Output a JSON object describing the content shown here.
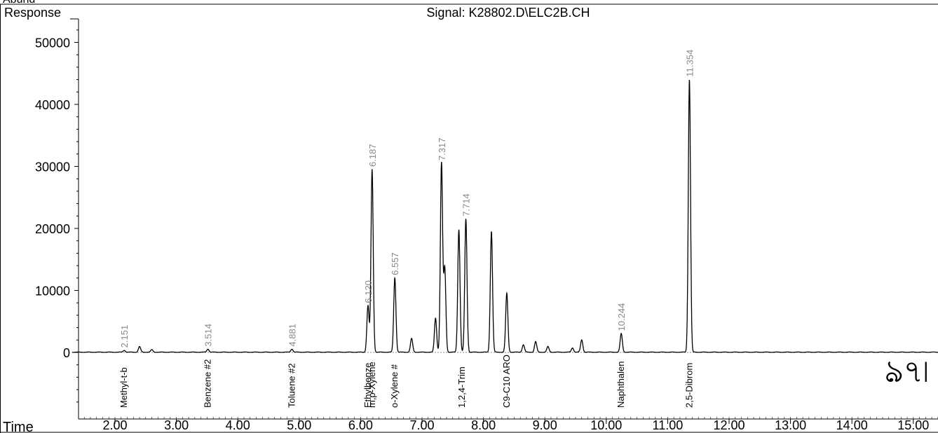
{
  "chart_data": {
    "type": "line",
    "title": "Signal: K28802.D\\ELC2B.CH",
    "xlabel": "Time",
    "ylabel": "Response",
    "top_axis_label": "Abund",
    "xlim": [
      1.2,
      16.0
    ],
    "ylim": [
      -9000,
      53000
    ],
    "x_ticks": [
      "2.00",
      "3.00",
      "4.00",
      "5.00",
      "6.00",
      "7.00",
      "8.00",
      "9.00",
      "10.00",
      "11.00",
      "12.00",
      "13.00",
      "14.00",
      "15.00"
    ],
    "y_ticks": [
      "50000",
      "40000",
      "30000",
      "20000",
      "10000",
      "0"
    ],
    "grid": false,
    "peaks": [
      {
        "rt": 2.151,
        "height": 300
      },
      {
        "rt": 2.4,
        "height": 900
      },
      {
        "rt": 2.6,
        "height": 400
      },
      {
        "rt": 3.514,
        "height": 500
      },
      {
        "rt": 4.881,
        "height": 500
      },
      {
        "rt": 6.12,
        "height": 7500
      },
      {
        "rt": 6.187,
        "height": 29500
      },
      {
        "rt": 6.557,
        "height": 12000
      },
      {
        "rt": 6.83,
        "height": 2200
      },
      {
        "rt": 7.22,
        "height": 5500
      },
      {
        "rt": 7.317,
        "height": 30500
      },
      {
        "rt": 7.37,
        "height": 13500
      },
      {
        "rt": 7.6,
        "height": 19800
      },
      {
        "rt": 7.714,
        "height": 21500
      },
      {
        "rt": 8.13,
        "height": 19500
      },
      {
        "rt": 8.38,
        "height": 9500
      },
      {
        "rt": 8.65,
        "height": 1200
      },
      {
        "rt": 8.85,
        "height": 1700
      },
      {
        "rt": 9.05,
        "height": 900
      },
      {
        "rt": 9.6,
        "height": 2000
      },
      {
        "rt": 9.45,
        "height": 700
      },
      {
        "rt": 10.244,
        "height": 3000
      },
      {
        "rt": 11.354,
        "height": 44000
      }
    ],
    "peak_labels": [
      "2.151",
      "3.514",
      "4.881",
      "6.120",
      "6.187",
      "6.557",
      "7.317",
      "7.714",
      "10.244",
      "11.354"
    ],
    "compound_labels": [
      {
        "rt": 2.151,
        "name": "Methyl-t-b"
      },
      {
        "rt": 3.514,
        "name": "Benzene #2"
      },
      {
        "rt": 4.881,
        "name": "Toluene #2"
      },
      {
        "rt": 6.12,
        "name": "Ethylbenze"
      },
      {
        "rt": 6.187,
        "name": "m,p-Xylene"
      },
      {
        "rt": 6.557,
        "name": "o-Xylene #"
      },
      {
        "rt": 7.65,
        "name": "1,2,4-Trim"
      },
      {
        "rt": 8.38,
        "name": "C9-C10 ARO"
      },
      {
        "rt": 10.244,
        "name": "Naphthalen"
      },
      {
        "rt": 11.354,
        "name": "2,5-Dibrom"
      }
    ],
    "annotation": "ঌ৭৷"
  }
}
